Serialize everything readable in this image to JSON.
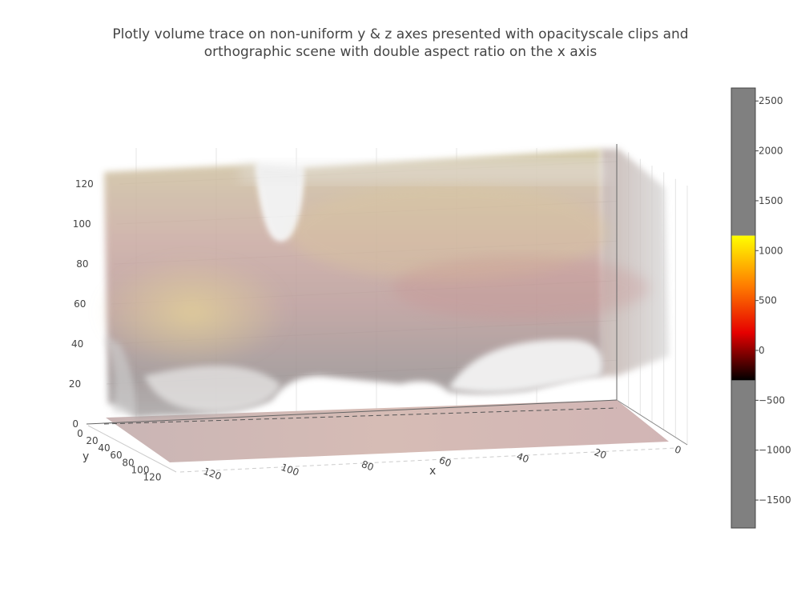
{
  "chart_data": {
    "type": "volume",
    "title_lines": [
      "Plotly volume trace on non-uniform y & z axes presented with opacityscale clips and",
      "orthographic scene with double aspect ratio on the x axis"
    ],
    "scene": {
      "projection": "orthographic",
      "aspect_ratio": {
        "x": 2,
        "y": 1,
        "z": 1
      },
      "xaxis": {
        "title": "x",
        "ticks": [
          "120",
          "100",
          "80",
          "60",
          "40",
          "20",
          "0"
        ],
        "tick_values": [
          120,
          100,
          80,
          60,
          40,
          20,
          0
        ],
        "range": [
          0,
          128
        ]
      },
      "yaxis": {
        "title": "y",
        "ticks": [
          "0",
          "20",
          "40",
          "60",
          "80",
          "100",
          "120"
        ],
        "tick_values": [
          0,
          20,
          40,
          60,
          80,
          100,
          120
        ],
        "range": [
          0,
          128
        ]
      },
      "zaxis": {
        "title": "",
        "ticks": [
          "0",
          "20",
          "40",
          "60",
          "80",
          "100",
          "120"
        ],
        "tick_values": [
          0,
          20,
          40,
          60,
          80,
          100,
          120
        ],
        "range": [
          0,
          128
        ]
      }
    },
    "colorbar": {
      "ticks": [
        "2500",
        "2000",
        "1500",
        "1000",
        "500",
        "0",
        "−500",
        "−1000",
        "−1500"
      ],
      "tick_values": [
        2500,
        2000,
        1500,
        1000,
        500,
        0,
        -500,
        -1000,
        -1500
      ],
      "range": [
        -1780,
        2630
      ],
      "colorscale_range": [
        -300,
        1150
      ],
      "clip_color": "#808080",
      "colorscale": [
        "#000000",
        "#e60000",
        "#ff7f00",
        "#ffff00"
      ]
    }
  }
}
